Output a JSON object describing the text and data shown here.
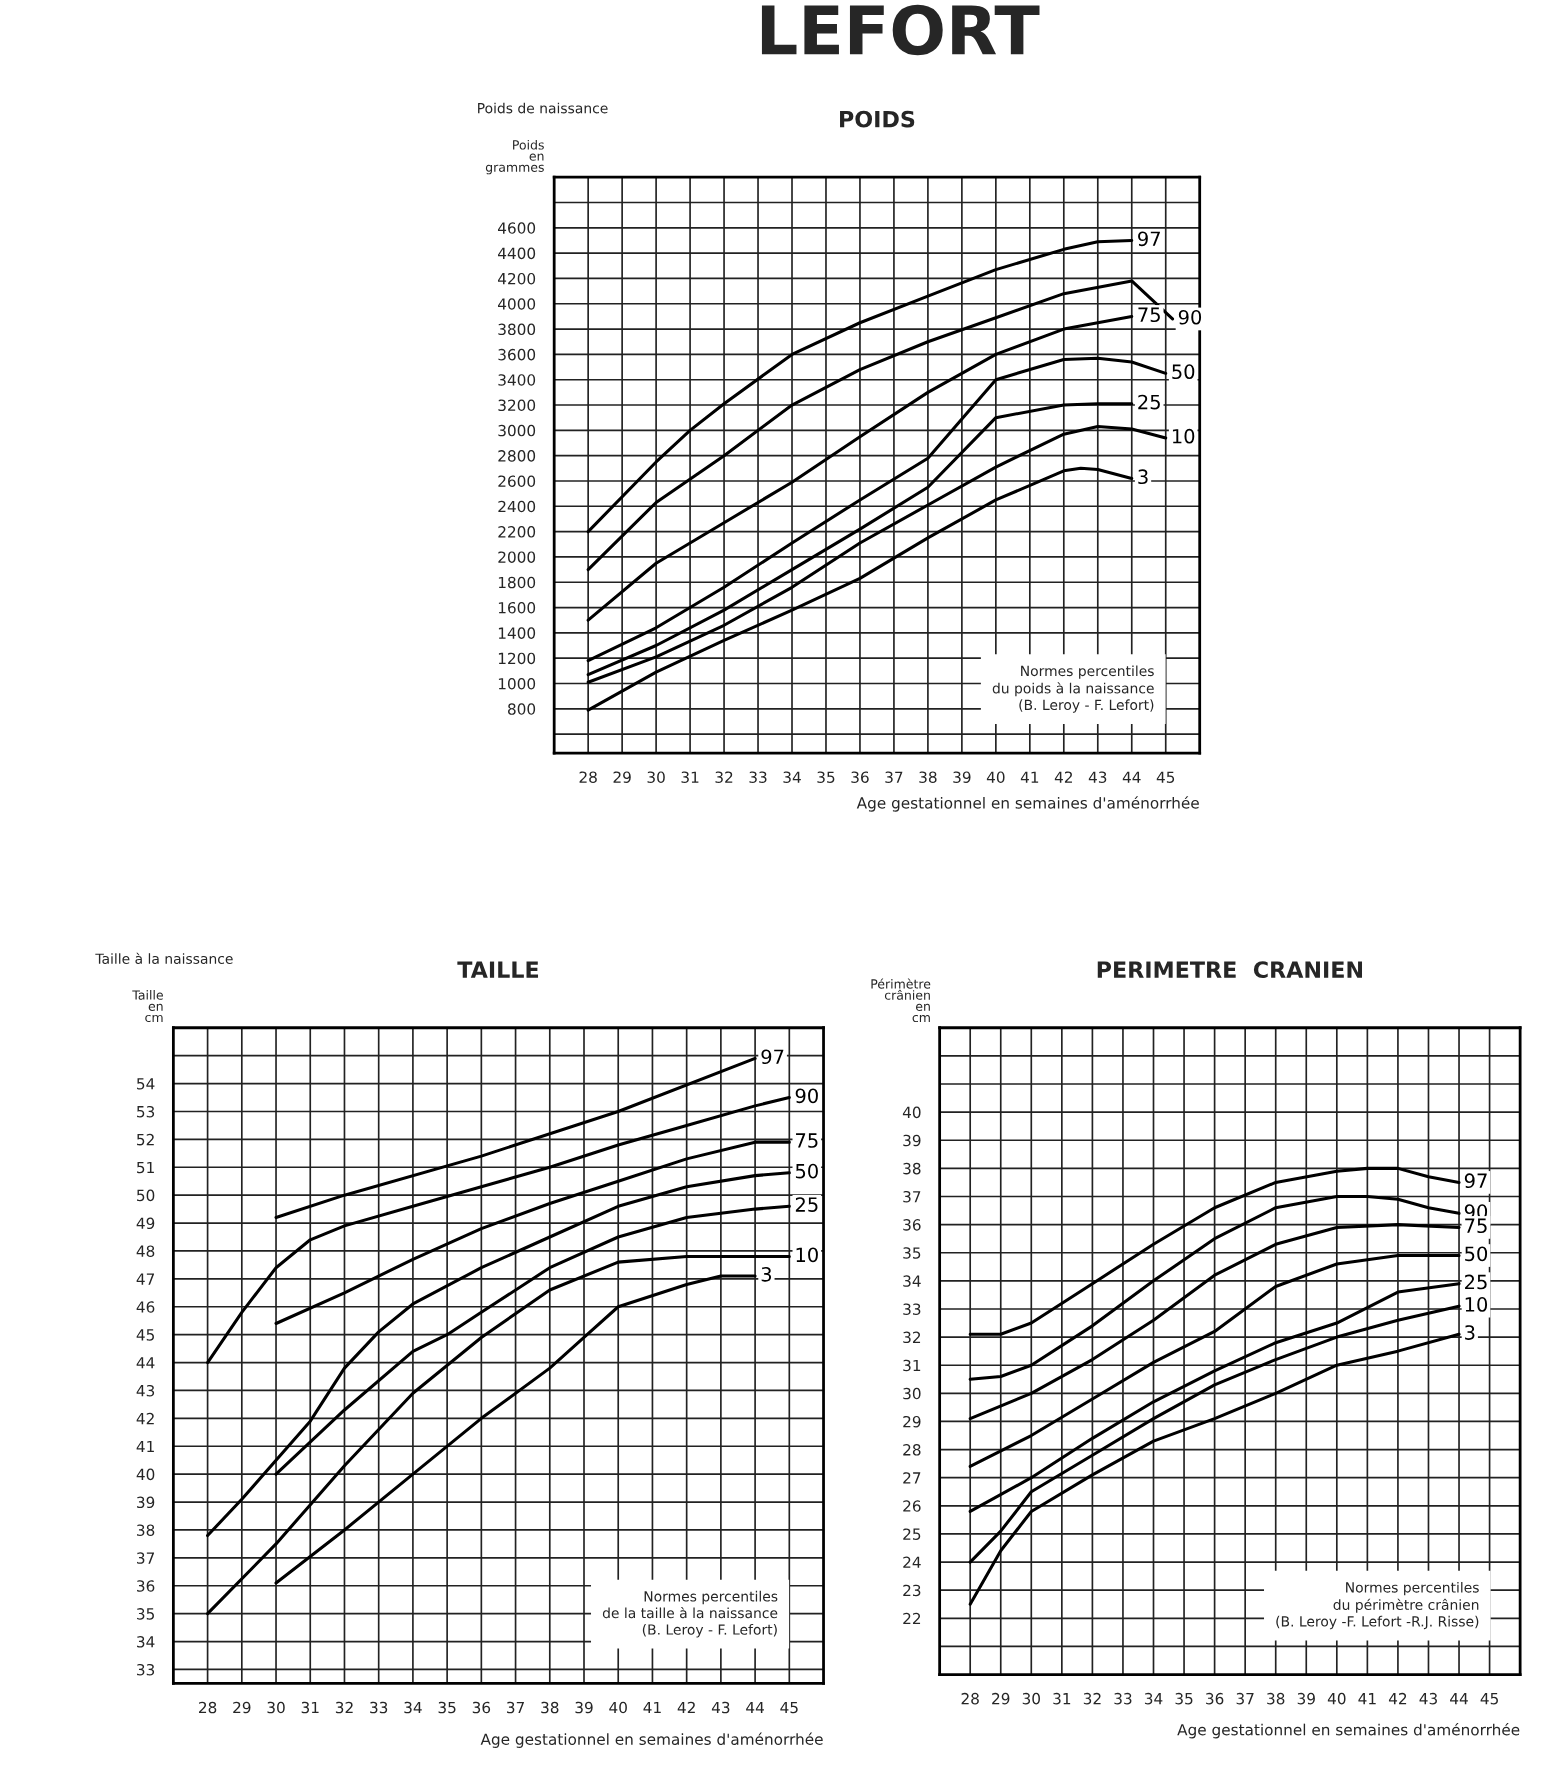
{
  "chart_data": [
    {
      "type": "line",
      "title": "POIDS",
      "subtitle": "Poids de naissance",
      "ylabel": "Poids en grammes",
      "xlabel": "Age gestationnel en semaines d'aménorrhée",
      "annotations": [
        "LEFORT",
        "Normes percentiles\ndu poids à la naissance\n(B. Leroy - F. Lefort)"
      ],
      "xlim": [
        27,
        46
      ],
      "xticks": [
        28,
        29,
        30,
        31,
        32,
        33,
        34,
        35,
        36,
        37,
        38,
        39,
        40,
        41,
        42,
        43,
        44,
        45
      ],
      "ylim": [
        450,
        5000
      ],
      "yticks": [
        {
          "value": 600,
          "label": null
        },
        800,
        1000,
        1200,
        1400,
        1600,
        1800,
        2000,
        2200,
        2400,
        2600,
        2800,
        3000,
        3200,
        3400,
        3600,
        3800,
        4000,
        4200,
        4400,
        4600,
        {
          "value": 4800,
          "label": null
        }
      ],
      "grid": true,
      "legend": false,
      "marker": "none",
      "line_style": "solid",
      "series": [
        {
          "name": "97",
          "color": "#000000",
          "x": [
            28,
            30,
            31,
            32,
            34,
            36,
            38,
            40,
            42,
            43,
            44
          ],
          "values": [
            2200,
            2750,
            3000,
            3210,
            3600,
            3850,
            4060,
            4270,
            4430,
            4490,
            4500
          ]
        },
        {
          "name": "90",
          "color": "#000000",
          "x": [
            28,
            30,
            32,
            34,
            36,
            38,
            40,
            42,
            44,
            45.2
          ],
          "values": [
            1900,
            2430,
            2800,
            3200,
            3480,
            3700,
            3890,
            4080,
            4180,
            3880
          ]
        },
        {
          "name": "75",
          "color": "#000000",
          "x": [
            28,
            30,
            32,
            34,
            36,
            38,
            40,
            42,
            44
          ],
          "values": [
            1500,
            1950,
            2270,
            2590,
            2950,
            3300,
            3600,
            3800,
            3900
          ]
        },
        {
          "name": "50",
          "color": "#000000",
          "x": [
            28,
            30,
            32,
            34,
            36,
            38,
            40,
            42,
            43,
            44,
            45
          ],
          "values": [
            1180,
            1440,
            1760,
            2110,
            2450,
            2780,
            3400,
            3560,
            3570,
            3540,
            3450
          ]
        },
        {
          "name": "25",
          "color": "#000000",
          "x": [
            28,
            30,
            32,
            34,
            36,
            38,
            40,
            42,
            43,
            44
          ],
          "values": [
            1070,
            1300,
            1580,
            1900,
            2220,
            2550,
            3100,
            3200,
            3210,
            3210
          ]
        },
        {
          "name": "10",
          "color": "#000000",
          "x": [
            28,
            30,
            32,
            34,
            36,
            38,
            40,
            42,
            43,
            44,
            45
          ],
          "values": [
            1010,
            1210,
            1460,
            1760,
            2110,
            2410,
            2710,
            2970,
            3030,
            3010,
            2940
          ]
        },
        {
          "name": "3",
          "color": "#000000",
          "x": [
            28,
            30,
            32,
            34,
            36,
            38,
            40,
            42,
            42.5,
            43,
            44
          ],
          "values": [
            790,
            1090,
            1340,
            1580,
            1830,
            2150,
            2450,
            2680,
            2700,
            2690,
            2620
          ]
        }
      ]
    },
    {
      "type": "line",
      "title": "TAILLE",
      "subtitle": "Taille à la naissance",
      "ylabel": "Taille en cm",
      "xlabel": "Age gestationnel en semaines d'aménorrhée",
      "annotations": [
        "Normes percentiles\nde la taille à la naissance\n(B. Leroy - F. Lefort)"
      ],
      "xlim": [
        27,
        46
      ],
      "xticks": [
        28,
        29,
        30,
        31,
        32,
        33,
        34,
        35,
        36,
        37,
        38,
        39,
        40,
        41,
        42,
        43,
        44,
        45
      ],
      "ylim": [
        32.5,
        56
      ],
      "yticks": [
        33,
        34,
        35,
        36,
        37,
        38,
        39,
        40,
        41,
        42,
        43,
        44,
        45,
        46,
        47,
        48,
        49,
        50,
        51,
        52,
        53,
        54,
        {
          "value": 55,
          "label": null
        }
      ],
      "grid": true,
      "legend": false,
      "marker": "none",
      "line_style": "solid",
      "series": [
        {
          "name": "97",
          "color": "#000000",
          "x": [
            30,
            32,
            36,
            40,
            44
          ],
          "values": [
            49.2,
            50.0,
            51.4,
            53.0,
            54.9
          ]
        },
        {
          "name": "90",
          "color": "#000000",
          "x": [
            28,
            29,
            30,
            31,
            32,
            34,
            36,
            38,
            40,
            42,
            44,
            45
          ],
          "values": [
            44.0,
            45.8,
            47.4,
            48.4,
            48.9,
            49.6,
            50.3,
            51.0,
            51.8,
            52.5,
            53.2,
            53.5
          ]
        },
        {
          "name": "75",
          "color": "#000000",
          "x": [
            30,
            32,
            34,
            36,
            38,
            40,
            42,
            44,
            45
          ],
          "values": [
            45.4,
            46.5,
            47.7,
            48.8,
            49.7,
            50.5,
            51.3,
            51.9,
            51.9
          ]
        },
        {
          "name": "50",
          "color": "#000000",
          "x": [
            28,
            29,
            30,
            31,
            32,
            33,
            34,
            36,
            38,
            40,
            42,
            44,
            45
          ],
          "values": [
            37.8,
            39.1,
            40.5,
            41.9,
            43.8,
            45.1,
            46.1,
            47.4,
            48.5,
            49.6,
            50.3,
            50.7,
            50.8
          ]
        },
        {
          "name": "25",
          "color": "#000000",
          "x": [
            30,
            32,
            34,
            35,
            36,
            38,
            40,
            42,
            44,
            45
          ],
          "values": [
            40.0,
            42.3,
            44.4,
            45.0,
            45.8,
            47.4,
            48.5,
            49.2,
            49.5,
            49.6
          ]
        },
        {
          "name": "10",
          "color": "#000000",
          "x": [
            28,
            30,
            32,
            34,
            36,
            38,
            40,
            42,
            44,
            45
          ],
          "values": [
            35.0,
            37.5,
            40.3,
            42.9,
            44.9,
            46.6,
            47.6,
            47.8,
            47.8,
            47.8
          ]
        },
        {
          "name": "3",
          "color": "#000000",
          "x": [
            30,
            32,
            34,
            36,
            38,
            39,
            40,
            42,
            43,
            44
          ],
          "values": [
            36.1,
            38.0,
            40.0,
            42.0,
            43.8,
            44.9,
            46.0,
            46.8,
            47.1,
            47.1
          ]
        }
      ]
    },
    {
      "type": "line",
      "title": "PERIMETRE  CRANIEN",
      "ylabel": "Périmètre crânien en cm",
      "xlabel": "Age gestationnel en semaines d'aménorrhée",
      "annotations": [
        "Normes percentiles\ndu périmètre crânien\n(B. Leroy -F. Lefort -R.J. Risse)"
      ],
      "xlim": [
        27,
        46
      ],
      "xticks": [
        28,
        29,
        30,
        31,
        32,
        33,
        34,
        35,
        36,
        37,
        38,
        39,
        40,
        41,
        42,
        43,
        44,
        45
      ],
      "ylim": [
        20,
        43
      ],
      "yticks": [
        {
          "value": 21,
          "label": null
        },
        22,
        23,
        24,
        25,
        26,
        27,
        28,
        29,
        30,
        31,
        32,
        33,
        34,
        35,
        36,
        37,
        38,
        39,
        40,
        {
          "value": 41,
          "label": null
        },
        {
          "value": 42,
          "label": null
        }
      ],
      "grid": true,
      "legend": false,
      "marker": "none",
      "line_style": "solid",
      "series": [
        {
          "name": "97",
          "color": "#000000",
          "x": [
            28,
            29,
            30,
            32,
            34,
            36,
            38,
            40,
            41,
            42,
            43,
            44
          ],
          "values": [
            32.1,
            32.1,
            32.5,
            33.9,
            35.3,
            36.6,
            37.5,
            37.9,
            38.0,
            38.0,
            37.7,
            37.5
          ]
        },
        {
          "name": "90",
          "color": "#000000",
          "x": [
            28,
            29,
            30,
            32,
            34,
            36,
            38,
            40,
            41,
            42,
            43,
            44
          ],
          "values": [
            30.5,
            30.6,
            31.0,
            32.4,
            34.0,
            35.5,
            36.6,
            37.0,
            37.0,
            36.9,
            36.6,
            36.4
          ]
        },
        {
          "name": "75",
          "color": "#000000",
          "x": [
            28,
            30,
            32,
            34,
            36,
            38,
            40,
            42,
            44
          ],
          "values": [
            29.1,
            30.0,
            31.2,
            32.6,
            34.2,
            35.3,
            35.9,
            36.0,
            35.9
          ]
        },
        {
          "name": "50",
          "color": "#000000",
          "x": [
            28,
            30,
            32,
            34,
            36,
            38,
            40,
            42,
            44
          ],
          "values": [
            27.4,
            28.5,
            29.8,
            31.1,
            32.2,
            33.8,
            34.6,
            34.9,
            34.9
          ]
        },
        {
          "name": "25",
          "color": "#000000",
          "x": [
            28,
            30,
            32,
            34,
            36,
            38,
            40,
            42,
            44
          ],
          "values": [
            25.8,
            27.0,
            28.4,
            29.7,
            30.8,
            31.8,
            32.5,
            33.6,
            33.9
          ]
        },
        {
          "name": "10",
          "color": "#000000",
          "x": [
            28,
            29,
            30,
            32,
            34,
            36,
            38,
            40,
            42,
            44
          ],
          "values": [
            24.0,
            25.1,
            26.5,
            27.8,
            29.1,
            30.3,
            31.2,
            32.0,
            32.6,
            33.1
          ]
        },
        {
          "name": "3",
          "color": "#000000",
          "x": [
            28,
            29,
            30,
            32,
            34,
            36,
            38,
            40,
            42,
            44
          ],
          "values": [
            22.5,
            24.4,
            25.8,
            27.1,
            28.3,
            29.1,
            30.0,
            31.0,
            31.5,
            32.1
          ]
        }
      ]
    }
  ]
}
